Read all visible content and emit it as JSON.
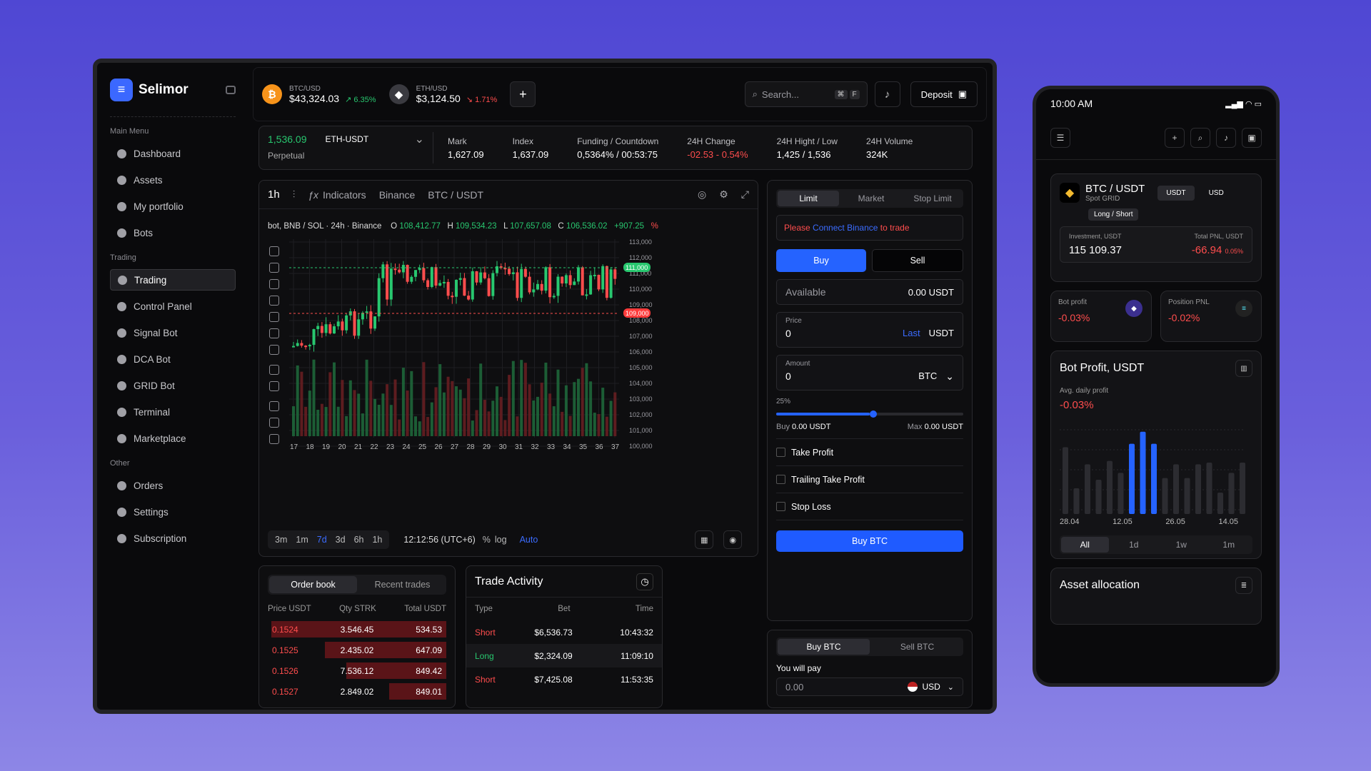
{
  "brand": "Selimor",
  "sidebar": {
    "main_label": "Main Menu",
    "trading_label": "Trading",
    "other_label": "Other",
    "main": [
      "Dashboard",
      "Assets",
      "My portfolio",
      "Bots"
    ],
    "trading": [
      "Trading",
      "Control Panel",
      "Signal Bot",
      "DCA Bot",
      "GRID Bot",
      "Terminal",
      "Marketplace"
    ],
    "other": [
      "Orders",
      "Settings",
      "Subscription"
    ]
  },
  "topbar": {
    "coins": [
      {
        "sym": "BTC/USD",
        "price": "$43,324.03",
        "chg": "6.35%",
        "dir": "up",
        "color": "#f7931a",
        "glyph": "₿"
      },
      {
        "sym": "ETH/USD",
        "price": "$3,124.50",
        "chg": "1.71%",
        "dir": "dn",
        "color": "#3a3a40",
        "glyph": "◆"
      }
    ],
    "search": "Search...",
    "k1": "⌘",
    "k2": "F",
    "deposit": "Deposit"
  },
  "market": {
    "price": "1,536.09",
    "pair": "ETH-USDT",
    "type": "Perpetual",
    "stats": [
      {
        "l": "Mark",
        "v": "1,627.09",
        "c": ""
      },
      {
        "l": "Index",
        "v": "1,637.09",
        "c": ""
      },
      {
        "l": "Funding / Countdown",
        "v": "0,5364% / 00:53:75",
        "c": ""
      },
      {
        "l": "24H Change",
        "v": "-02.53 - 0.54%",
        "c": "dn"
      },
      {
        "l": "24H Hight / Low",
        "v": "1,425 / 1,536",
        "c": ""
      },
      {
        "l": "24H Volume",
        "v": "324K",
        "c": ""
      }
    ]
  },
  "chart": {
    "tf": "1h",
    "indicators": "Indicators",
    "exchange": "Binance",
    "pair": "BTC / USDT",
    "title": "bot, BNB / SOL · 24h · Binance",
    "o": "108,412.77",
    "h": "109,534.23",
    "l": "107,657.08",
    "c": "106,536.02",
    "chg": "+907.25",
    "pct": "%",
    "y_ticks": [
      "113,000",
      "112,000",
      "111,000",
      "110,000",
      "109,000",
      "108,000",
      "107,000",
      "106,000",
      "105,000",
      "104,000",
      "103,000",
      "102,000",
      "101,000",
      "100,000"
    ],
    "x_ticks": [
      "17",
      "18",
      "19",
      "20",
      "21",
      "22",
      "23",
      "24",
      "25",
      "26",
      "27",
      "28",
      "29",
      "30",
      "31",
      "32",
      "33",
      "34",
      "35",
      "36",
      "37"
    ],
    "hi_label": "111,000",
    "lo_label": "109,000",
    "timeframes": [
      "3m",
      "1m",
      "7d",
      "3d",
      "6h",
      "1h"
    ],
    "active_tf": "7d",
    "time": "12:12:56 (UTC+6)",
    "log": "log",
    "auto": "Auto"
  },
  "orderbook": {
    "tab1": "Order book",
    "tab2": "Recent trades",
    "cols": [
      "Price USDT",
      "Qty STRK",
      "Total USDT"
    ],
    "rows": [
      [
        "0.1524",
        "3.546.45",
        "534.53",
        0.98
      ],
      [
        "0.1525",
        "2.435.02",
        "647.09",
        0.68
      ],
      [
        "0.1526",
        "7.536.12",
        "849.42",
        0.56
      ],
      [
        "0.1527",
        "2.849.02",
        "849.01",
        0.32
      ]
    ]
  },
  "trade": {
    "title": "Trade Activity",
    "cols": [
      "Type",
      "Bet",
      "Time"
    ],
    "rows": [
      [
        "Short",
        "$6,536.73",
        "10:43:32"
      ],
      [
        "Long",
        "$2,324.09",
        "11:09:10"
      ],
      [
        "Short",
        "$7,425.08",
        "11:53:35"
      ]
    ]
  },
  "order": {
    "tabs": [
      "Limit",
      "Market",
      "Stop Limit"
    ],
    "warn1": "Please ",
    "warn_link": "Connect Binance",
    "warn2": " to trade",
    "buy": "Buy",
    "sell": "Sell",
    "available_l": "Available",
    "available_v": "0.00 USDT",
    "price_l": "Price",
    "price_v": "0",
    "last": "Last",
    "usdt": "USDT",
    "amount_l": "Amount",
    "amount_v": "0",
    "btc": "BTC",
    "slider": "25%",
    "buy_l": "Buy ",
    "buy_v": "0.00 USDT",
    "max_l": "Max ",
    "max_v": "0.00 USDT",
    "checks": [
      "Take Profit",
      "Trailing Take Profit",
      "Stop Loss"
    ],
    "submit": "Buy BTC"
  },
  "pay": {
    "tab1": "Buy BTC",
    "tab2": "Sell BTC",
    "label": "You will pay",
    "value": "0.00",
    "currency": "USD"
  },
  "phone": {
    "time": "10:00 AM",
    "pair": "BTC / USDT",
    "sub": "Spot GRID",
    "u1": "USDT",
    "u2": "USD",
    "mode": "Long / Short",
    "inv_l": "Investment, USDT",
    "inv_v": "115 109.37",
    "pnl_l": "Total PNL, USDT",
    "pnl_v": "-66.94",
    "pnl_p": "0.05%",
    "bp_l": "Bot profit",
    "bp_v": "-0.03%",
    "pp_l": "Position PNL",
    "pp_v": "-0.02%",
    "chart_title": "Bot Profit, USDT",
    "avg_l": "Avg. daily profit",
    "avg_v": "-0.03%",
    "dates": [
      "28.04",
      "12.05",
      "26.05",
      "14.05"
    ],
    "tabs": [
      "All",
      "1d",
      "1w",
      "1m"
    ],
    "alloc": "Asset allocation"
  },
  "chart_data": {
    "type": "bar",
    "values": [
      0.78,
      0.3,
      0.58,
      0.4,
      0.62,
      0.48,
      0.82,
      0.96,
      0.82,
      0.42,
      0.58,
      0.42,
      0.58,
      0.6,
      0.25,
      0.48,
      0.6
    ],
    "highlight": [
      6,
      7,
      8
    ]
  }
}
